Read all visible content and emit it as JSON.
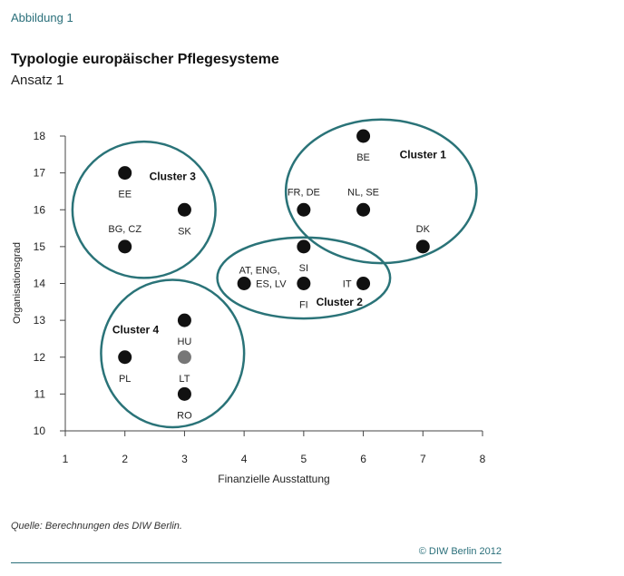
{
  "figure_label": "Abbildung 1",
  "title": "Typologie europäischer Pflegesysteme",
  "subtitle": "Ansatz 1",
  "source": "Quelle: Berechnungen des DIW Berlin.",
  "copyright": "© DIW Berlin 2012",
  "colors": {
    "cluster_ring": "#2a7378",
    "point": "#111111",
    "point_highlight": "#777777",
    "accent": "#2a6f7a"
  },
  "chart_data": {
    "type": "scatter",
    "xlabel": "Finanzielle Ausstattung",
    "ylabel": "Organisationsgrad",
    "xlim": [
      1,
      8
    ],
    "ylim": [
      10,
      18
    ],
    "xticks": [
      1,
      2,
      3,
      4,
      5,
      6,
      7,
      8
    ],
    "yticks": [
      10,
      11,
      12,
      13,
      14,
      15,
      16,
      17,
      18
    ],
    "grid": false,
    "points": [
      {
        "label": "BE",
        "x": 6,
        "y": 18,
        "label_pos": "below"
      },
      {
        "label": "FR, DE",
        "x": 5,
        "y": 16,
        "label_pos": "above"
      },
      {
        "label": "NL, SE",
        "x": 6,
        "y": 16,
        "label_pos": "above"
      },
      {
        "label": "DK",
        "x": 7,
        "y": 15,
        "label_pos": "above"
      },
      {
        "label": "EE",
        "x": 2,
        "y": 17,
        "label_pos": "below"
      },
      {
        "label": "SK",
        "x": 3,
        "y": 16,
        "label_pos": "below"
      },
      {
        "label": "BG, CZ",
        "x": 2,
        "y": 15,
        "label_pos": "above"
      },
      {
        "label": "SI",
        "x": 5,
        "y": 15,
        "label_pos": "below"
      },
      {
        "label": "AT, ENG,",
        "x": 4,
        "y": 14,
        "label_pos": "above-left"
      },
      {
        "label": "ES, LV",
        "x": 4,
        "y": 14,
        "label_pos": "right"
      },
      {
        "label": "FI",
        "x": 5,
        "y": 14,
        "label_pos": "below"
      },
      {
        "label": "IT",
        "x": 6,
        "y": 14,
        "label_pos": "left"
      },
      {
        "label": "HU",
        "x": 3,
        "y": 13,
        "label_pos": "below"
      },
      {
        "label": "PL",
        "x": 2,
        "y": 12,
        "label_pos": "below"
      },
      {
        "label": "LT",
        "x": 3,
        "y": 12,
        "label_pos": "below",
        "highlight": true
      },
      {
        "label": "RO",
        "x": 3,
        "y": 11,
        "label_pos": "below"
      }
    ],
    "clusters": [
      {
        "name": "Cluster 1",
        "cx": 6.3,
        "cy": 16.5,
        "rx": 1.6,
        "ry": 1.95,
        "label_x": 7.0,
        "label_y": 17.5
      },
      {
        "name": "Cluster 2",
        "cx": 5.0,
        "cy": 14.15,
        "rx": 1.45,
        "ry": 1.1,
        "label_x": 5.6,
        "label_y": 13.5
      },
      {
        "name": "Cluster 3",
        "cx": 2.32,
        "cy": 16.0,
        "rx": 1.2,
        "ry": 1.85,
        "label_x": 2.8,
        "label_y": 16.9
      },
      {
        "name": "Cluster 4",
        "cx": 2.8,
        "cy": 12.1,
        "rx": 1.2,
        "ry": 2.0,
        "label_x": 2.18,
        "label_y": 12.75
      }
    ]
  }
}
